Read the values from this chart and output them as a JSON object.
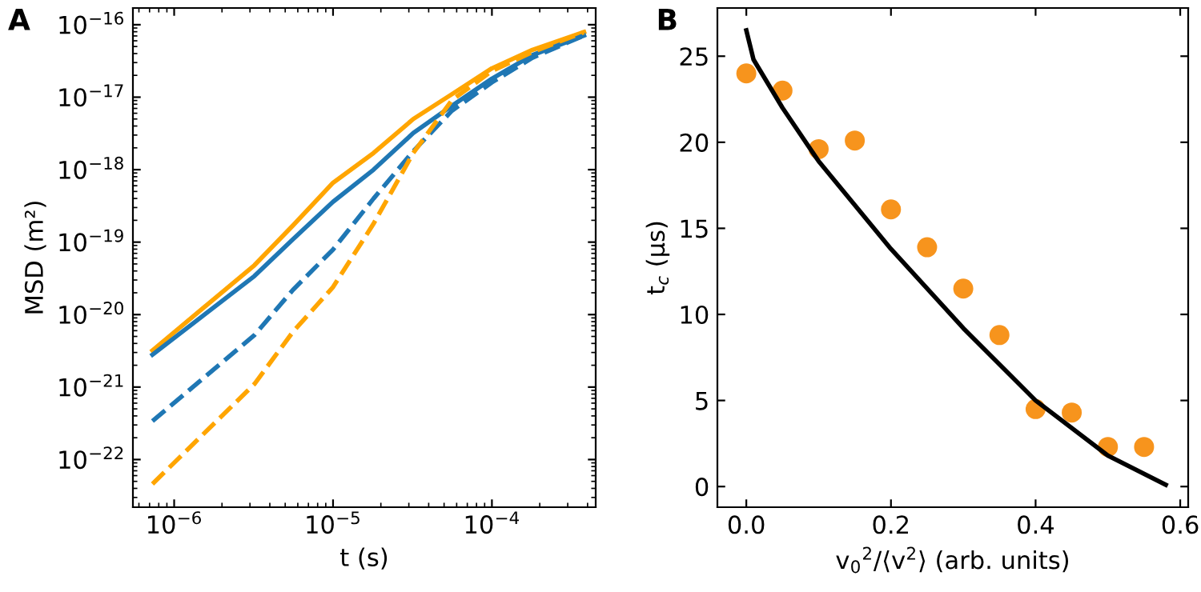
{
  "chart_data": [
    {
      "type": "line",
      "title": "A",
      "xlabel": "t (s)",
      "ylabel": "MSD (m²)",
      "log": "xy",
      "xlim": [
        5.5e-07,
        0.00045
      ],
      "ylim": [
        2.2e-23,
        1.7e-16
      ],
      "xticks": [
        {
          "value": 1e-06,
          "label": "10$^{−6}$"
        },
        {
          "value": 1e-05,
          "label": "10$^{−5}$"
        },
        {
          "value": 0.0001,
          "label": "10$^{−4}$"
        }
      ],
      "yticks": [
        {
          "value": 1e-22,
          "label": "10$^{−22}$"
        },
        {
          "value": 1e-21,
          "label": "10$^{−21}$"
        },
        {
          "value": 1e-20,
          "label": "10$^{−20}$"
        },
        {
          "value": 1e-19,
          "label": "10$^{−19}$"
        },
        {
          "value": 1e-18,
          "label": "10$^{−18}$"
        },
        {
          "value": 1e-17,
          "label": "10$^{−17}$"
        },
        {
          "value": 1e-16,
          "label": "10$^{−16}$"
        }
      ],
      "x": [
        7.3e-07,
        3.2e-06,
        5.6e-06,
        1e-05,
        1.8e-05,
        3.2e-05,
        5.6e-05,
        0.0001,
        0.00018,
        0.00038
      ],
      "series": [
        {
          "color": "#ffa500",
          "line_style": "solid",
          "values": [
            3.2e-21,
            4.8e-20,
            1.7e-19,
            6.6e-19,
            1.7e-18,
            5e-18,
            1.1e-17,
            2.5e-17,
            4.5e-17,
            7.9e-17
          ]
        },
        {
          "color": "#1f77b4",
          "line_style": "solid",
          "values": [
            2.8e-21,
            3.4e-20,
            1.1e-19,
            3.6e-19,
            1e-18,
            3.2e-18,
            7.6e-18,
            1.8e-17,
            3.8e-17,
            7.1e-17
          ]
        },
        {
          "color": "#1f77b4",
          "line_style": "dashed",
          "values": [
            3.4e-22,
            5.2e-21,
            2.2e-20,
            7.9e-20,
            4e-19,
            1.8e-18,
            6.5e-18,
            1.6e-17,
            3.5e-17,
            7.1e-17
          ]
        },
        {
          "color": "#ffa500",
          "line_style": "dashed",
          "values": [
            4.6e-23,
            1.1e-21,
            5.8e-21,
            2.4e-20,
            1.8e-19,
            1.7e-18,
            9.1e-18,
            2.3e-17,
            4.2e-17,
            7.9e-17
          ]
        }
      ],
      "grid": false,
      "legend": false
    },
    {
      "type": "scatter",
      "title": "B",
      "xlabel": "v$_{0}$$^{2}$/⟨v$^{2}$⟩ (arb. units)",
      "ylabel": "t$_{c}$ (μs)",
      "xlim": [
        -0.04,
        0.611
      ],
      "ylim": [
        -1.2,
        27.8
      ],
      "xticks": [
        {
          "value": 0,
          "label": "0.0"
        },
        0.2,
        0.4,
        0.6
      ],
      "yticks": [
        0,
        5,
        10,
        15,
        20,
        25
      ],
      "series": [
        {
          "type": "scatter",
          "color": "#f7941d",
          "marker": "circle",
          "x": [
            0,
            0.05,
            0.1,
            0.15,
            0.2,
            0.25,
            0.3,
            0.35,
            0.4,
            0.45,
            0.5,
            0.55
          ],
          "values": [
            24.0,
            23.0,
            19.6,
            20.1,
            16.1,
            13.9,
            11.5,
            8.8,
            4.5,
            4.3,
            2.3,
            2.3
          ]
        },
        {
          "type": "line",
          "color": "#000000",
          "line_style": "solid",
          "x": [
            0,
            0.01,
            0.05,
            0.1,
            0.2,
            0.3,
            0.4,
            0.5,
            0.58
          ],
          "values": [
            26.5,
            24.8,
            22.0,
            18.9,
            13.8,
            9.2,
            5.0,
            1.8,
            0.1
          ]
        }
      ],
      "grid": false,
      "legend": false
    }
  ]
}
